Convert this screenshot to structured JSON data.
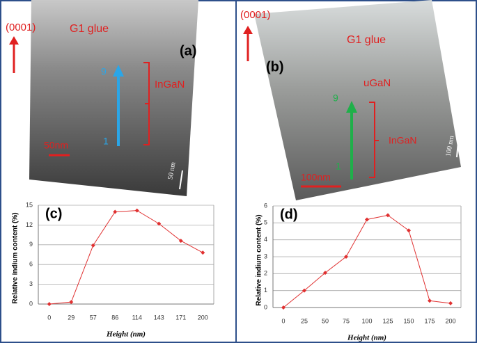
{
  "panels": [
    {
      "direction": "(0001)",
      "glue": "G1 glue",
      "label": "(a)",
      "layer": "InGaN",
      "top_mark": "9",
      "bottom_mark": "1",
      "scale": "50nm",
      "scale_bar": "50 nm"
    },
    {
      "direction": "(0001)",
      "glue": "G1 glue",
      "label": "(b)",
      "cap": "uGaN",
      "layer": "InGaN",
      "top_mark": "9",
      "bottom_mark": "1",
      "scale": "100nm",
      "scale_bar": "100 nm"
    }
  ],
  "chart_data": [
    {
      "type": "line",
      "title": "(c)",
      "x_label": "Height (nm)",
      "y_label": "Relative indium content (%)",
      "categories": [
        "0",
        "29",
        "57",
        "86",
        "114",
        "143",
        "171",
        "200"
      ],
      "values": [
        0,
        0.3,
        8.9,
        14,
        14.2,
        12.2,
        9.6,
        7.8
      ],
      "color": "#e03030",
      "ylim": [
        0,
        15
      ],
      "yticks": [
        0,
        3,
        6,
        9,
        12,
        15
      ],
      "grid": true
    },
    {
      "type": "line",
      "title": "(d)",
      "x_label": "Height (nm)",
      "y_label": "Relative indium content (%)",
      "categories": [
        "0",
        "25",
        "50",
        "75",
        "100",
        "125",
        "150",
        "175",
        "200"
      ],
      "values": [
        0,
        1.0,
        2.05,
        3.0,
        5.2,
        5.45,
        4.55,
        0.4,
        0.25
      ],
      "color": "#e03030",
      "ylim": [
        0,
        6
      ],
      "yticks": [
        0,
        1,
        2,
        3,
        4,
        5,
        6
      ],
      "grid": true
    }
  ]
}
